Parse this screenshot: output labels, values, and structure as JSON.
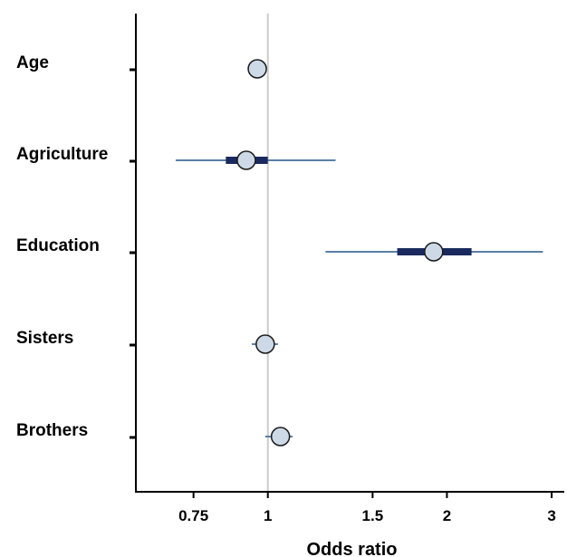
{
  "chart_data": {
    "type": "forest",
    "xlabel": "Odds ratio",
    "x_scale": "log",
    "xlim": [
      0.6,
      3.15
    ],
    "xticks": [
      0.75,
      1,
      1.5,
      2,
      3
    ],
    "xtick_labels": [
      "0.75",
      "1",
      "1.5",
      "2",
      "3"
    ],
    "reference_line": 1,
    "grid": false,
    "categories": [
      "Age",
      "Agriculture",
      "Education",
      "Sisters",
      "Brothers"
    ],
    "series": [
      {
        "estimate": [
          0.96,
          0.92,
          1.9,
          0.99,
          1.05
        ],
        "ci_inner": [
          [
            0.96,
            0.96
          ],
          [
            0.85,
            1.0
          ],
          [
            1.65,
            2.2
          ],
          [
            0.99,
            0.99
          ],
          [
            1.05,
            1.05
          ]
        ],
        "ci_outer": [
          [
            0.96,
            0.96
          ],
          [
            0.7,
            1.3
          ],
          [
            1.25,
            2.9
          ],
          [
            0.94,
            1.04
          ],
          [
            0.99,
            1.1
          ]
        ]
      }
    ],
    "colors": {
      "outer_ci": "#5b7fa6",
      "inner_ci": "#1a2a5e",
      "point_fill": "#cdd9e6",
      "point_stroke": "#1a1a1a",
      "reference": "#cccccc",
      "axis": "#000000"
    }
  }
}
